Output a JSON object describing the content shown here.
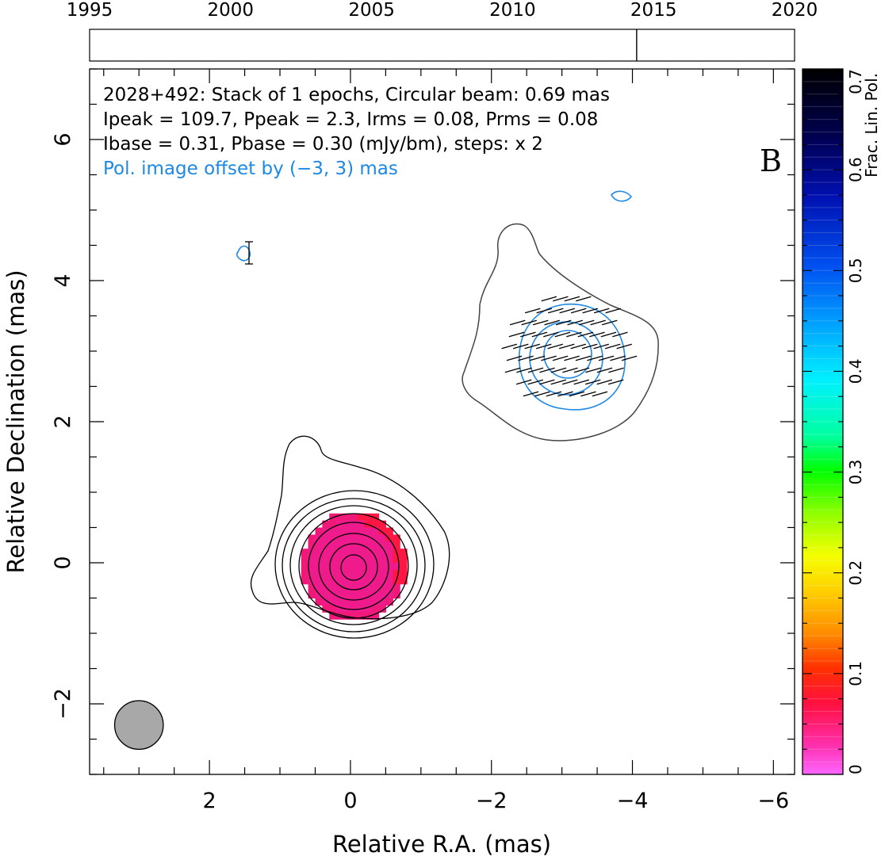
{
  "chart_data": {
    "type": "contour",
    "xlabel": "Relative R.A. (mas)",
    "ylabel": "Relative Declination (mas)",
    "xlim": [
      3.7,
      -6.3
    ],
    "ylim": [
      -3.0,
      7.0
    ],
    "x_ticks": [
      2,
      0,
      -2,
      -4,
      -6
    ],
    "x_tick_labels": [
      "2",
      "0",
      "−2",
      "−4",
      "−6"
    ],
    "y_ticks": [
      -2,
      0,
      2,
      4,
      6
    ],
    "y_tick_labels": [
      "−2",
      "0",
      "2",
      "4",
      "6"
    ],
    "annotation_lines": [
      "2028+492: Stack of 1 epochs, Circular beam: 0.69 mas",
      "Ipeak = 109.7, Ppeak = 2.3, Irms = 0.08, Prms = 0.08",
      "Ibase = 0.31, Pbase = 0.30 (mJy/bm), steps: x 2"
    ],
    "pol_offset_note": "Pol. image offset by (−3, 3) mas",
    "panel_label": "B",
    "beam": {
      "x": 3.0,
      "y": -2.3,
      "diameter_mas": 0.69
    },
    "total_intensity_peak": {
      "x": -0.05,
      "y": -0.05
    },
    "secondary_component": {
      "x": -3.1,
      "y": 3.0
    },
    "epoch_axis": {
      "range": [
        1995,
        2020
      ],
      "tick_labels": [
        "1995",
        "2000",
        "2005",
        "2010",
        "2015",
        "2020"
      ],
      "epochs": [
        2014.4
      ]
    },
    "colorbar": {
      "label": "Frac. Lin. Pol.",
      "range": [
        0,
        0.7
      ],
      "tick_labels": [
        "0",
        "0.1",
        "0.2",
        "0.3",
        "0.4",
        "0.5",
        "0.6",
        "0.7"
      ]
    },
    "colors": {
      "intensity_contour": "#000000",
      "lowest_contour": "#444444",
      "pol_contour": "#1e88e5",
      "frac_pol_pixels": "#ef1a8c",
      "beam_fill": "#a8a8a8"
    }
  }
}
